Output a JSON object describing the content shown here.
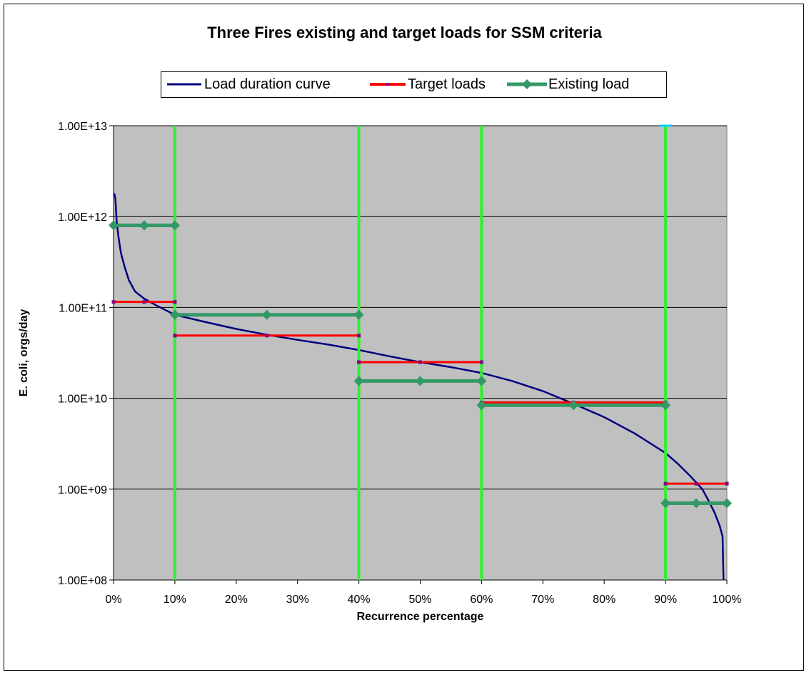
{
  "chart_data": {
    "type": "line",
    "title": "Three Fires existing and target loads for SSM criteria",
    "xlabel": "Recurrence percentage",
    "ylabel": "E. coli, orgs/day",
    "x_range": [
      0,
      100
    ],
    "y_range": [
      100000000.0,
      10000000000000.0
    ],
    "y_scale": "log",
    "x_ticks": [
      "0%",
      "10%",
      "20%",
      "30%",
      "40%",
      "50%",
      "60%",
      "70%",
      "80%",
      "90%",
      "100%"
    ],
    "y_ticks": [
      "1.00E+08",
      "1.00E+09",
      "1.00E+10",
      "1.00E+11",
      "1.00E+12",
      "1.00E+13"
    ],
    "grid": "horizontal",
    "legend_position": "top",
    "plot_background": "#c0c0c0",
    "zone_boundaries": [
      10,
      40,
      60,
      90
    ],
    "zone_line_color": "#33ee33",
    "series": [
      {
        "name": "Load duration curve",
        "color": "#000080",
        "points": [
          [
            0.1,
            1800000000000.0
          ],
          [
            0.3,
            1600000000000.0
          ],
          [
            0.5,
            900000000000.0
          ],
          [
            0.8,
            600000000000.0
          ],
          [
            1.2,
            400000000000.0
          ],
          [
            1.8,
            280000000000.0
          ],
          [
            2.5,
            200000000000.0
          ],
          [
            3.5,
            150000000000.0
          ],
          [
            5,
            125000000000.0
          ],
          [
            7,
            105000000000.0
          ],
          [
            10,
            83000000000.0
          ],
          [
            15,
            69000000000.0
          ],
          [
            20,
            58000000000.0
          ],
          [
            25,
            50000000000.0
          ],
          [
            30,
            44000000000.0
          ],
          [
            35,
            39000000000.0
          ],
          [
            40,
            34000000000.0
          ],
          [
            45,
            29000000000.0
          ],
          [
            50,
            25000000000.0
          ],
          [
            55,
            22000000000.0
          ],
          [
            60,
            19000000000.0
          ],
          [
            65,
            15500000000.0
          ],
          [
            70,
            12000000000.0
          ],
          [
            75,
            8700000000.0
          ],
          [
            80,
            6200000000.0
          ],
          [
            85,
            4100000000.0
          ],
          [
            90,
            2500000000.0
          ],
          [
            92,
            1900000000.0
          ],
          [
            94,
            1400000000.0
          ],
          [
            96,
            1000000000.0
          ],
          [
            97,
            750000000.0
          ],
          [
            98,
            550000000.0
          ],
          [
            98.8,
            400000000.0
          ],
          [
            99.3,
            300000000.0
          ],
          [
            99.4,
            150000000.0
          ],
          [
            99.45,
            100000000.0
          ]
        ]
      },
      {
        "name": "Target loads",
        "color": "#ff0000",
        "segments": [
          {
            "x": [
              0,
              5,
              10
            ],
            "y": 115000000000.0
          },
          {
            "x": [
              10,
              25,
              40
            ],
            "y": 49000000000.0
          },
          {
            "x": [
              40,
              50,
              60
            ],
            "y": 25000000000.0
          },
          {
            "x": [
              60,
              75,
              90
            ],
            "y": 9000000000.0
          },
          {
            "x": [
              90,
              95,
              100
            ],
            "y": 1150000000.0
          }
        ]
      },
      {
        "name": "Existing load",
        "color": "#339966",
        "segments": [
          {
            "x": [
              0,
              5,
              10
            ],
            "y": 800000000000.0
          },
          {
            "x": [
              10,
              25,
              40
            ],
            "y": 83000000000.0
          },
          {
            "x": [
              40,
              50,
              60
            ],
            "y": 15500000000.0
          },
          {
            "x": [
              60,
              75,
              90
            ],
            "y": 8400000000.0
          },
          {
            "x": [
              90,
              95,
              100
            ],
            "y": 700000000.0
          }
        ]
      }
    ]
  }
}
